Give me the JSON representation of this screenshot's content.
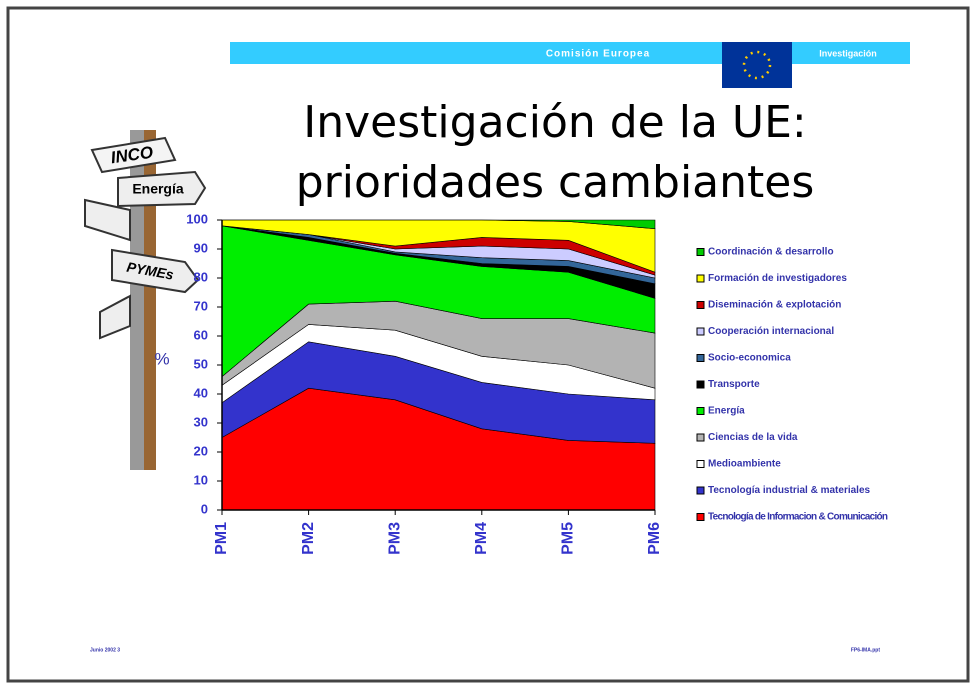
{
  "header": {
    "organization": "Comisión Europea",
    "section": "Investigación"
  },
  "signpost": [
    "INCO",
    "Energía",
    "PYMEs"
  ],
  "footer": {
    "left": "Junio 2002  3",
    "right": "FP6-IMA.ppt"
  },
  "chart_data": {
    "type": "stacked-area",
    "title": [
      "Investigación de la UE:",
      "prioridades cambiantes"
    ],
    "y_label": "%",
    "categories": [
      "PM1",
      "PM2",
      "PM3",
      "PM4",
      "PM5",
      "PM6"
    ],
    "ylim": [
      0,
      100
    ],
    "yticks": [
      0,
      10,
      20,
      30,
      40,
      50,
      60,
      70,
      80,
      90,
      100
    ],
    "series": [
      {
        "name": "Tecnología de Informacion & Comunicación",
        "color": "#ff0000",
        "values": [
          25,
          42,
          38,
          28,
          24,
          23
        ]
      },
      {
        "name": "Tecnología industrial & materiales",
        "color": "#3333cc",
        "values": [
          12,
          16,
          15,
          16,
          16,
          15
        ]
      },
      {
        "name": "Medioambiente",
        "color": "#ffffff",
        "values": [
          6,
          6,
          9,
          9,
          10,
          4
        ]
      },
      {
        "name": "Ciencias de la vida",
        "color": "#b3b3b3",
        "values": [
          3,
          7,
          10,
          13,
          16,
          19
        ]
      },
      {
        "name": "Energía",
        "color": "#00ee00",
        "values": [
          52,
          22,
          16,
          18,
          16,
          12
        ]
      },
      {
        "name": "Transporte",
        "color": "#000000",
        "values": [
          0,
          1,
          0.5,
          1,
          2,
          5
        ]
      },
      {
        "name": "Socio-economica",
        "color": "#336699",
        "values": [
          0,
          1,
          0.5,
          2,
          2,
          2
        ]
      },
      {
        "name": "Cooperación internacional",
        "color": "#ccccff",
        "values": [
          0,
          0,
          1,
          4,
          4,
          1
        ]
      },
      {
        "name": "Diseminación & explotación",
        "color": "#cc0000",
        "values": [
          0,
          0,
          1,
          3,
          3,
          1
        ]
      },
      {
        "name": "Formación de investigadores",
        "color": "#ffff00",
        "values": [
          2,
          5,
          9,
          6,
          6.5,
          15
        ]
      },
      {
        "name": "Coordinación & desarrollo",
        "color": "#00cc00",
        "values": [
          0,
          0,
          0,
          0,
          0.5,
          3
        ]
      }
    ]
  }
}
